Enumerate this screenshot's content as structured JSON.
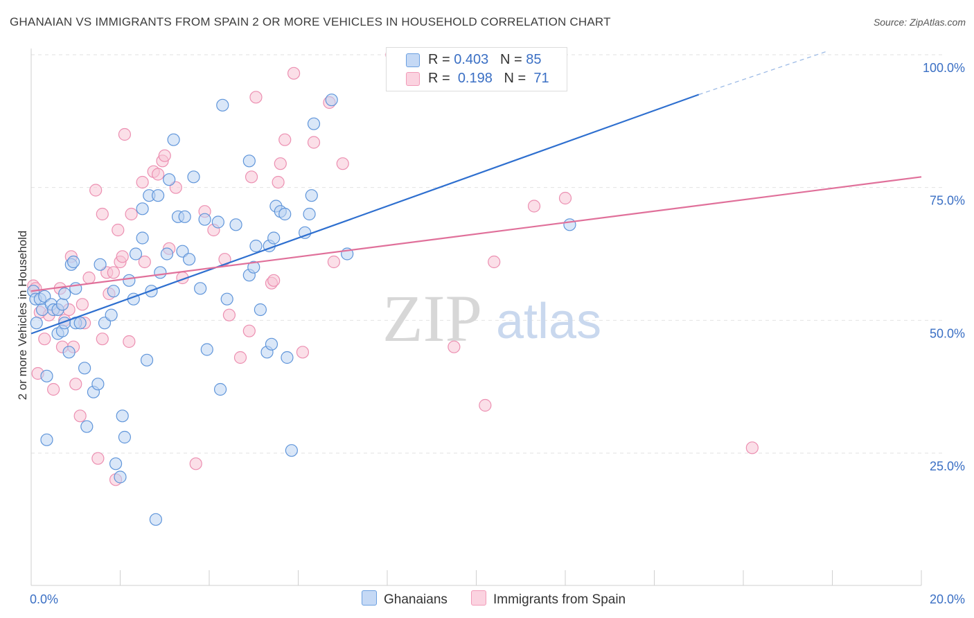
{
  "title": "GHANAIAN VS IMMIGRANTS FROM SPAIN 2 OR MORE VEHICLES IN HOUSEHOLD CORRELATION CHART",
  "source": "Source: ZipAtlas.com",
  "watermark": {
    "zip": "ZIP",
    "atlas": "atlas"
  },
  "colors": {
    "blue": "#6a9fe0",
    "blue_line": "#2e6fcf",
    "pink": "#f29ab8",
    "pink_line": "#e0709a",
    "tick_label": "#3a6fc4"
  },
  "legend_top": [
    {
      "r_label": "R = ",
      "r_value": "0.403",
      "n_label": "N = ",
      "n_value": "85"
    },
    {
      "r_label": "R = ",
      "r_value": "0.198",
      "n_label": "N = ",
      "n_value": "71"
    }
  ],
  "bottom_legend": [
    "Ghanaians",
    "Immigrants from Spain"
  ],
  "chart_data": {
    "type": "scatter",
    "title": "GHANAIAN VS IMMIGRANTS FROM SPAIN 2 OR MORE VEHICLES IN HOUSEHOLD CORRELATION CHART",
    "xlabel": "",
    "ylabel": "2 or more Vehicles in Household",
    "xlim": [
      0,
      20
    ],
    "ylim": [
      5,
      105
    ],
    "x_tick_labels": [
      "0.0%",
      "20.0%"
    ],
    "y_ticks": [
      25,
      50,
      75,
      100
    ],
    "y_tick_labels": [
      "25.0%",
      "50.0%",
      "75.0%",
      "100.0%"
    ],
    "grid": true,
    "legend_position": "top-center",
    "series": [
      {
        "name": "Ghanaians",
        "color": "#6a9fe0",
        "r": 0.403,
        "n": 85,
        "trend": {
          "x0": 0,
          "y0": 47.5,
          "x1": 15,
          "y1": 92.5,
          "dashed_to_x": 17.9,
          "dashed_to_y": 100.7
        },
        "points": [
          [
            0.05,
            55.5
          ],
          [
            0.1,
            54
          ],
          [
            0.12,
            49.5
          ],
          [
            0.2,
            54
          ],
          [
            0.25,
            52
          ],
          [
            0.35,
            27.5
          ],
          [
            0.35,
            39.5
          ],
          [
            0.3,
            54.5
          ],
          [
            0.45,
            53
          ],
          [
            0.5,
            52
          ],
          [
            0.6,
            52
          ],
          [
            0.6,
            47.5
          ],
          [
            0.7,
            53
          ],
          [
            0.7,
            48
          ],
          [
            0.75,
            55
          ],
          [
            0.75,
            49.5
          ],
          [
            0.85,
            44
          ],
          [
            0.9,
            60.5
          ],
          [
            1.0,
            56
          ],
          [
            1.0,
            49.5
          ],
          [
            0.95,
            61
          ],
          [
            1.1,
            49.5
          ],
          [
            1.2,
            41
          ],
          [
            1.25,
            30
          ],
          [
            1.4,
            36.5
          ],
          [
            1.5,
            38
          ],
          [
            1.55,
            60.5
          ],
          [
            1.65,
            49.5
          ],
          [
            1.8,
            51
          ],
          [
            1.85,
            55.5
          ],
          [
            1.9,
            23
          ],
          [
            2.0,
            20.5
          ],
          [
            2.05,
            32
          ],
          [
            2.1,
            28
          ],
          [
            2.2,
            57.5
          ],
          [
            2.3,
            54
          ],
          [
            2.35,
            62.5
          ],
          [
            2.5,
            65.5
          ],
          [
            2.5,
            71
          ],
          [
            2.6,
            42.5
          ],
          [
            2.65,
            73.5
          ],
          [
            2.7,
            55.5
          ],
          [
            2.8,
            12.5
          ],
          [
            2.85,
            73.5
          ],
          [
            2.9,
            59
          ],
          [
            3.05,
            62.5
          ],
          [
            3.1,
            76.5
          ],
          [
            3.2,
            84
          ],
          [
            3.3,
            69.5
          ],
          [
            3.4,
            63
          ],
          [
            3.45,
            69.5
          ],
          [
            3.55,
            61.5
          ],
          [
            3.65,
            77
          ],
          [
            3.8,
            56
          ],
          [
            3.9,
            69
          ],
          [
            3.95,
            44.5
          ],
          [
            4.2,
            68.5
          ],
          [
            4.25,
            37
          ],
          [
            4.3,
            90.5
          ],
          [
            4.4,
            54
          ],
          [
            4.6,
            68
          ],
          [
            4.9,
            80
          ],
          [
            4.9,
            58.5
          ],
          [
            5.0,
            60
          ],
          [
            5.05,
            64
          ],
          [
            5.15,
            52
          ],
          [
            5.3,
            44
          ],
          [
            5.35,
            64
          ],
          [
            5.4,
            45.5
          ],
          [
            5.45,
            65.5
          ],
          [
            5.5,
            71.5
          ],
          [
            5.6,
            70.5
          ],
          [
            5.7,
            70
          ],
          [
            5.75,
            43
          ],
          [
            5.85,
            25.5
          ],
          [
            6.15,
            66.5
          ],
          [
            6.25,
            70
          ],
          [
            6.3,
            73.5
          ],
          [
            6.35,
            87
          ],
          [
            6.75,
            91.5
          ],
          [
            7.1,
            62.5
          ],
          [
            12.1,
            68
          ]
        ]
      },
      {
        "name": "Immigrants from Spain",
        "color": "#f29ab8",
        "r": 0.198,
        "n": 71,
        "trend": {
          "x0": 0,
          "y0": 55.5,
          "x1": 20,
          "y1": 77
        },
        "points": [
          [
            0.05,
            56.5
          ],
          [
            0.1,
            56
          ],
          [
            0.15,
            40
          ],
          [
            0.2,
            51.5
          ],
          [
            0.3,
            46.5
          ],
          [
            0.4,
            51
          ],
          [
            0.5,
            37
          ],
          [
            0.6,
            52
          ],
          [
            0.65,
            56
          ],
          [
            0.7,
            45
          ],
          [
            0.75,
            50
          ],
          [
            0.85,
            52
          ],
          [
            0.9,
            62
          ],
          [
            0.95,
            45
          ],
          [
            1.0,
            38
          ],
          [
            1.1,
            32
          ],
          [
            1.15,
            53
          ],
          [
            1.2,
            49.5
          ],
          [
            1.3,
            58
          ],
          [
            1.45,
            74.5
          ],
          [
            1.5,
            24
          ],
          [
            1.6,
            70
          ],
          [
            1.6,
            46.5
          ],
          [
            1.7,
            59
          ],
          [
            1.75,
            55
          ],
          [
            1.85,
            59
          ],
          [
            1.9,
            20
          ],
          [
            1.95,
            67
          ],
          [
            2.0,
            61
          ],
          [
            2.05,
            62
          ],
          [
            2.1,
            85
          ],
          [
            2.2,
            46
          ],
          [
            2.25,
            70
          ],
          [
            2.5,
            76
          ],
          [
            2.55,
            61
          ],
          [
            2.75,
            78
          ],
          [
            2.85,
            77.5
          ],
          [
            2.95,
            80
          ],
          [
            3.0,
            81
          ],
          [
            3.1,
            63.5
          ],
          [
            3.25,
            75
          ],
          [
            3.4,
            58
          ],
          [
            3.7,
            23
          ],
          [
            3.9,
            70.5
          ],
          [
            4.1,
            67
          ],
          [
            4.35,
            61.5
          ],
          [
            4.45,
            51
          ],
          [
            4.7,
            43
          ],
          [
            4.9,
            48
          ],
          [
            4.95,
            77
          ],
          [
            5.05,
            92
          ],
          [
            5.4,
            57
          ],
          [
            5.45,
            57.5
          ],
          [
            5.55,
            76
          ],
          [
            5.6,
            79.5
          ],
          [
            5.7,
            84
          ],
          [
            5.9,
            96.5
          ],
          [
            6.1,
            44
          ],
          [
            6.35,
            83.5
          ],
          [
            6.7,
            91
          ],
          [
            6.8,
            61
          ],
          [
            7.0,
            79.5
          ],
          [
            8.1,
            100
          ],
          [
            9.5,
            45
          ],
          [
            10.2,
            34
          ],
          [
            10.4,
            61
          ],
          [
            11.3,
            71.5
          ],
          [
            12.0,
            73
          ],
          [
            16.2,
            26
          ]
        ]
      }
    ]
  }
}
